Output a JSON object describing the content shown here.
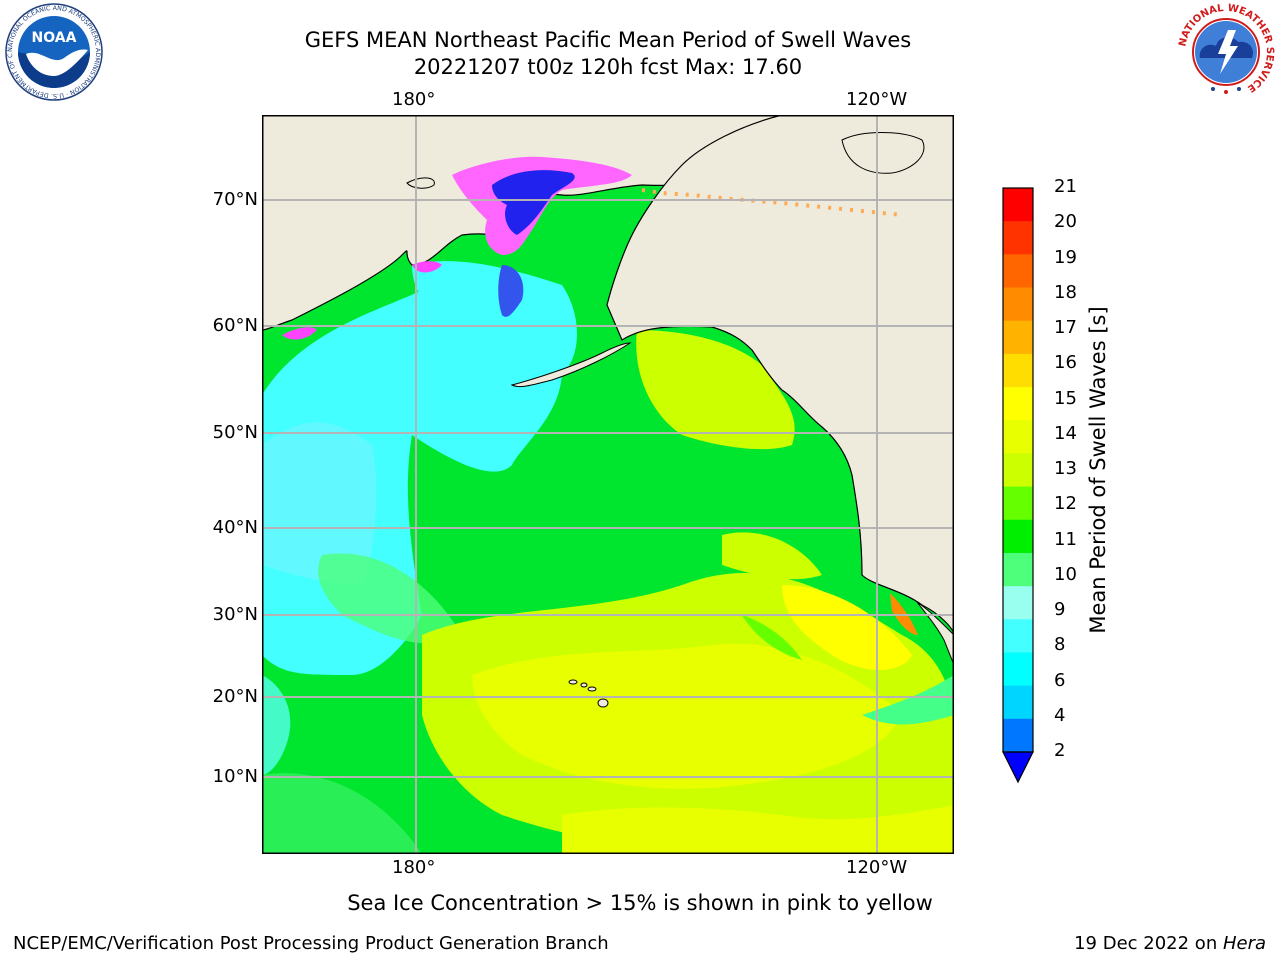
{
  "title": {
    "line1": "GEFS MEAN Northeast Pacific Mean Period of Swell Waves",
    "line2": "20221207 t00z 120h fcst   Max: 17.60"
  },
  "logos": {
    "noaa": {
      "text": "NOAA",
      "ring_text": "NATIONAL OCEANIC AND ATMOSPHERIC ADMINISTRATION · U.S. DEPARTMENT OF COMMERCE"
    },
    "nws": {
      "ring_text": "NATIONAL WEATHER SERVICE"
    }
  },
  "map": {
    "projection": "Mercator",
    "region": "Northeast Pacific",
    "lon_labels": [
      "180°",
      "120°W"
    ],
    "lat_labels": [
      "70°N",
      "60°N",
      "50°N",
      "40°N",
      "30°N",
      "20°N",
      "10°N"
    ],
    "gridlines": true,
    "colors": {
      "land": "#efebdc",
      "gridline": "#b4b4b4",
      "coastline": "#000000"
    }
  },
  "colorbar": {
    "label": "Mean Period of Swell Waves [s]",
    "ticks": [
      "21",
      "20",
      "19",
      "18",
      "17",
      "16",
      "15",
      "14",
      "13",
      "12",
      "11",
      "10",
      "9",
      "8",
      "6",
      "4",
      "2"
    ],
    "colors": [
      "#ff0000",
      "#ff3300",
      "#ff6600",
      "#ff8c00",
      "#ffb300",
      "#ffdd00",
      "#ffff00",
      "#e8ff00",
      "#ccff00",
      "#66ff00",
      "#00ee00",
      "#4dff7a",
      "#99ffee",
      "#44ffff",
      "#00ffff",
      "#00d5ff",
      "#0077ff"
    ],
    "extend_color": "#0000ff"
  },
  "caption": "Sea Ice Concentration > 15% is shown in pink to yellow",
  "footer": {
    "left": "NCEP/EMC/Verification Post Processing Product Generation Branch",
    "right_prefix": "19 Dec 2022 on ",
    "right_host": "Hera"
  }
}
